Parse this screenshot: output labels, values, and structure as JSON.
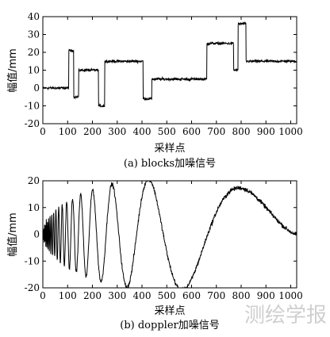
{
  "chart_data": [
    {
      "type": "line",
      "signal": "blocks",
      "caption": "(a) blocks加噪信号",
      "xlabel": "采样点",
      "ylabel": "幅值/mm",
      "xlim": [
        0,
        1024
      ],
      "ylim": [
        -20,
        40
      ],
      "xticks": [
        0,
        100,
        200,
        300,
        400,
        500,
        600,
        700,
        800,
        900,
        1000
      ],
      "yticks": [
        -20,
        -10,
        0,
        10,
        20,
        30,
        40
      ],
      "noise_amplitude": 1.1,
      "segments": [
        {
          "x_start": 0,
          "x_end": 105,
          "y": 0
        },
        {
          "x_start": 105,
          "x_end": 125,
          "y": 21
        },
        {
          "x_start": 125,
          "x_end": 145,
          "y": -5
        },
        {
          "x_start": 145,
          "x_end": 225,
          "y": 10
        },
        {
          "x_start": 225,
          "x_end": 250,
          "y": -10
        },
        {
          "x_start": 250,
          "x_end": 405,
          "y": 15
        },
        {
          "x_start": 405,
          "x_end": 440,
          "y": -6
        },
        {
          "x_start": 440,
          "x_end": 662,
          "y": 5
        },
        {
          "x_start": 662,
          "x_end": 770,
          "y": 25
        },
        {
          "x_start": 770,
          "x_end": 788,
          "y": 10
        },
        {
          "x_start": 788,
          "x_end": 820,
          "y": 36
        },
        {
          "x_start": 820,
          "x_end": 1024,
          "y": 15
        }
      ]
    },
    {
      "type": "line",
      "signal": "doppler",
      "caption": "(b) doppler加噪信号",
      "xlabel": "采样点",
      "ylabel": "幅值/mm",
      "xlim": [
        0,
        1024
      ],
      "ylim": [
        -20,
        20
      ],
      "xticks": [
        0,
        100,
        200,
        300,
        400,
        500,
        600,
        700,
        800,
        900,
        1000
      ],
      "yticks": [
        -20,
        -10,
        0,
        10,
        20
      ],
      "noise_amplitude": 1.2
    }
  ],
  "watermark": "测绘学报"
}
